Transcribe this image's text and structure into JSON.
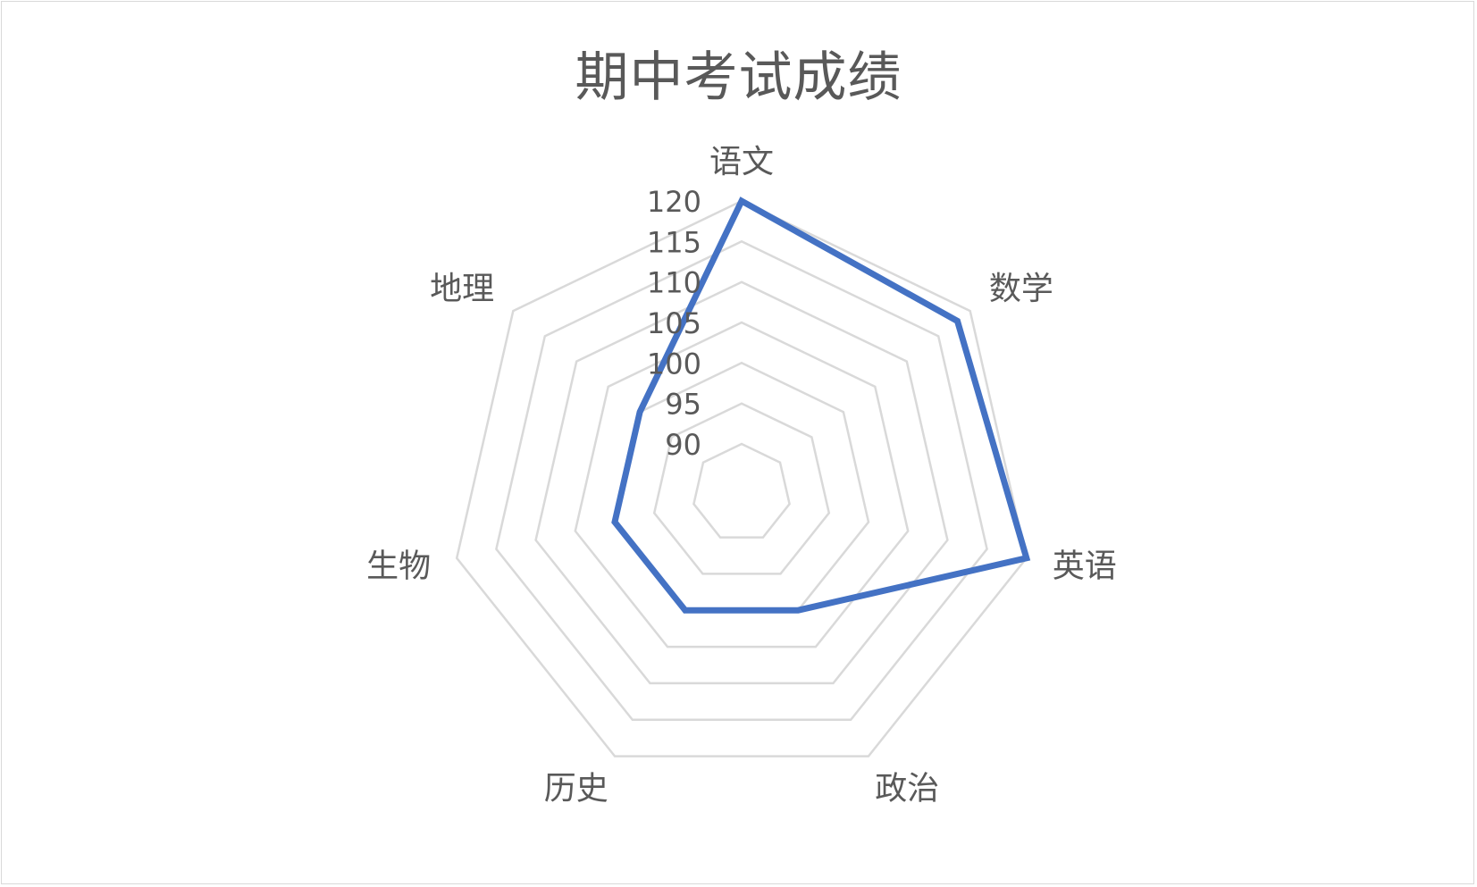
{
  "chart_data": {
    "type": "radar",
    "title": "期中考试成绩",
    "categories": [
      "语文",
      "数学",
      "英语",
      "政治",
      "历史",
      "生物",
      "地理"
    ],
    "series": [
      {
        "values": [
          120,
          118,
          120,
          100,
          100,
          100,
          100
        ]
      }
    ],
    "radial_ticks": [
      "90",
      "95",
      "100",
      "105",
      "110",
      "115",
      "120"
    ],
    "rlim": [
      90,
      120
    ],
    "grid": true,
    "legend": "none",
    "colors": {
      "series": "#4472c4",
      "grid": "#d9d9d9",
      "text": "#595959"
    }
  }
}
